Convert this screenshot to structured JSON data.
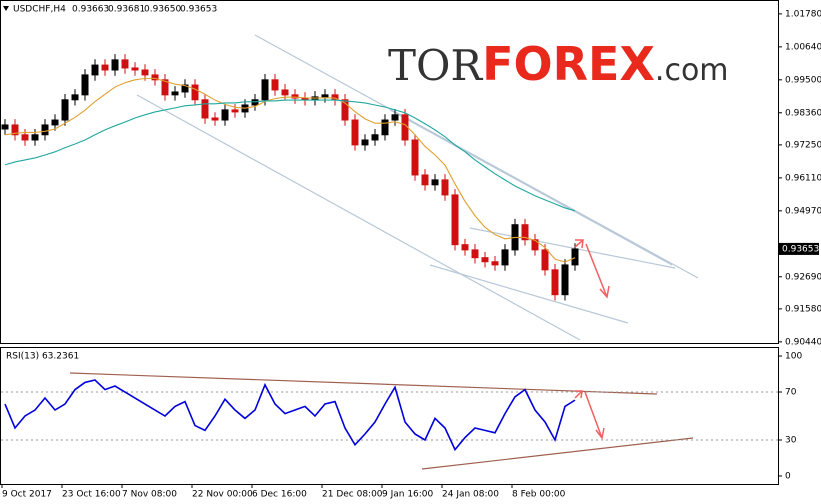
{
  "chart_data": [
    {
      "type": "candlestick",
      "title": "USDCHF,H4",
      "header_ohlc": [
        0.93663,
        0.93681,
        {
          "value": 0.9365,
          "label": "0.93650"
        },
        0.93653
      ],
      "watermark": {
        "prefix": "TOR",
        "brand": "FOREX",
        "suffix": ".com"
      },
      "last_price": 0.93653,
      "up_color": "#000000",
      "down_color": "#d01010",
      "open": [
        0.978,
        0.9794,
        0.976,
        0.9742,
        0.976,
        0.9794,
        0.9811,
        0.9881,
        0.9898,
        0.9967,
        1.0001,
        0.9984,
        1.0019,
        0.9991,
        0.9984,
        0.9967,
        0.995,
        0.9898,
        0.9908,
        0.9932,
        0.9881,
        0.9818,
        0.9811,
        0.9846,
        0.9839,
        0.9863,
        0.9881,
        0.995,
        0.9915,
        0.9898,
        0.9887,
        0.9881,
        0.9891,
        0.9898,
        0.9881,
        0.9811,
        0.9725,
        0.9742,
        0.976,
        0.9811,
        0.9829,
        0.9742,
        0.9621,
        0.9587,
        0.9604,
        0.9552,
        0.938,
        0.9362,
        0.9335,
        0.9321,
        0.931,
        0.9362,
        0.9449,
        0.9397,
        0.9362,
        0.9293,
        0.9207,
        0.931
      ],
      "high": [
        0.9814,
        0.9814,
        0.978,
        0.978,
        0.9814,
        0.9831,
        0.9901,
        0.9918,
        0.9987,
        1.0021,
        1.0021,
        1.0039,
        1.0039,
        1.0011,
        1.0004,
        0.9987,
        0.997,
        0.9928,
        0.9952,
        0.9952,
        0.9901,
        0.9838,
        0.9866,
        0.9866,
        0.9883,
        0.9901,
        0.997,
        0.997,
        0.9935,
        0.9918,
        0.9907,
        0.9911,
        0.9918,
        0.9918,
        0.9901,
        0.9831,
        0.9762,
        0.978,
        0.9831,
        0.9849,
        0.9849,
        0.9762,
        0.9641,
        0.9624,
        0.9624,
        0.9572,
        0.94,
        0.9382,
        0.9355,
        0.9341,
        0.9382,
        0.9469,
        0.9469,
        0.9417,
        0.9382,
        0.9313,
        0.933,
        0.9385
      ],
      "low": [
        0.976,
        0.974,
        0.9722,
        0.9722,
        0.974,
        0.9774,
        0.9791,
        0.9861,
        0.9878,
        0.9947,
        0.9964,
        0.9964,
        0.9971,
        0.9964,
        0.9947,
        0.993,
        0.9878,
        0.9878,
        0.9888,
        0.9861,
        0.9798,
        0.9791,
        0.9791,
        0.9819,
        0.9819,
        0.9843,
        0.9861,
        0.9895,
        0.9878,
        0.9867,
        0.9861,
        0.9861,
        0.9871,
        0.9861,
        0.9791,
        0.9705,
        0.9705,
        0.9722,
        0.974,
        0.9791,
        0.9722,
        0.9601,
        0.9567,
        0.9567,
        0.9532,
        0.936,
        0.9342,
        0.9315,
        0.9301,
        0.929,
        0.929,
        0.9342,
        0.9377,
        0.9342,
        0.9273,
        0.9187,
        0.9187,
        0.929
      ],
      "close": [
        0.9794,
        0.976,
        0.9742,
        0.976,
        0.9794,
        0.9811,
        0.9881,
        0.9898,
        0.9967,
        1.0001,
        0.9984,
        1.0019,
        0.9991,
        0.9984,
        0.9967,
        0.995,
        0.9898,
        0.9908,
        0.9932,
        0.9881,
        0.9818,
        0.9811,
        0.9846,
        0.9839,
        0.9863,
        0.9881,
        0.995,
        0.9915,
        0.9898,
        0.9887,
        0.9881,
        0.9891,
        0.9898,
        0.9881,
        0.9811,
        0.9725,
        0.9742,
        0.976,
        0.9811,
        0.9829,
        0.9742,
        0.9621,
        0.9587,
        0.9604,
        0.9552,
        0.938,
        0.9362,
        0.9335,
        0.9321,
        0.931,
        0.9362,
        0.9449,
        0.9397,
        0.9362,
        0.9293,
        0.9207,
        0.931,
        0.9365
      ],
      "series": [
        {
          "color": "#e0a030",
          "values": [
            0.976,
            0.9765,
            0.9768,
            0.9768,
            0.9772,
            0.978,
            0.98,
            0.982,
            0.9845,
            0.9875,
            0.99,
            0.9925,
            0.994,
            0.995,
            0.9955,
            0.9955,
            0.9945,
            0.9935,
            0.993,
            0.9918,
            0.99,
            0.988,
            0.9865,
            0.9855,
            0.9852,
            0.9858,
            0.9875,
            0.9885,
            0.989,
            0.989,
            0.9888,
            0.9887,
            0.9888,
            0.9887,
            0.987,
            0.984,
            0.9815,
            0.98,
            0.98,
            0.9805,
            0.9795,
            0.976,
            0.972,
            0.969,
            0.9655,
            0.959,
            0.953,
            0.948,
            0.944,
            0.9415,
            0.94,
            0.9405,
            0.9405,
            0.9395,
            0.937,
            0.933,
            0.932,
            0.9335
          ]
        },
        {
          "color": "#20a8a0",
          "values": [
            0.9656,
            0.9666,
            0.9673,
            0.968,
            0.969,
            0.9701,
            0.9715,
            0.9728,
            0.9742,
            0.976,
            0.9777,
            0.9791,
            0.9804,
            0.9818,
            0.9829,
            0.9839,
            0.9846,
            0.9853,
            0.986,
            0.9863,
            0.9867,
            0.9867,
            0.987,
            0.987,
            0.9874,
            0.9874,
            0.9877,
            0.9877,
            0.988,
            0.988,
            0.988,
            0.988,
            0.988,
            0.988,
            0.9877,
            0.9874,
            0.987,
            0.9863,
            0.9856,
            0.9846,
            0.9836,
            0.9818,
            0.9798,
            0.9777,
            0.9753,
            0.9725,
            0.9701,
            0.9673,
            0.9649,
            0.9625,
            0.9604,
            0.9583,
            0.9566,
            0.9549,
            0.9535,
            0.9521,
            0.9507,
            0.9497
          ]
        }
      ],
      "ylim": [
        0.904,
        1.0226
      ],
      "yticks": [
        {
          "value": 1.0178,
          "label": "1.01780"
        },
        {
          "value": 1.0064,
          "label": "1.00640"
        },
        {
          "value": 0.995,
          "label": "0.99500"
        },
        {
          "value": 0.9836,
          "label": "0.98360"
        },
        {
          "value": 0.9725,
          "label": "0.97250"
        },
        {
          "value": 0.9611,
          "label": "0.96110"
        },
        {
          "value": 0.9497,
          "label": "0.94970"
        },
        {
          "value": 0.9269,
          "label": "0.92690"
        },
        {
          "value": 0.9158,
          "label": "0.91580"
        },
        {
          "value": 0.9044,
          "label": "0.90440"
        }
      ],
      "xticks": [
        {
          "value": 0,
          "label": "9 Oct 2017"
        },
        {
          "value": 6,
          "label": "23 Oct 16:00"
        },
        {
          "value": 12,
          "label": "7 Nov 08:00"
        },
        {
          "value": 19,
          "label": "22 Nov 00:00"
        },
        {
          "value": 25,
          "label": "6 Dec 16:00"
        },
        {
          "value": 32,
          "label": "21 Dec 08:00"
        },
        {
          "value": 38,
          "label": "9 Jan 16:00"
        },
        {
          "value": 44,
          "label": "24 Jan 08:00"
        },
        {
          "value": 51,
          "label": "8 Feb 00:00"
        }
      ]
    },
    {
      "type": "line",
      "title": "RSI(13) 63.2361",
      "series": [
        {
          "color": "#0000dd",
          "values": [
            60,
            40,
            50,
            55,
            65,
            55,
            60,
            72,
            78,
            80,
            72,
            75,
            70,
            65,
            60,
            55,
            50,
            58,
            62,
            42,
            38,
            50,
            64,
            55,
            48,
            55,
            76,
            60,
            52,
            55,
            58,
            50,
            60,
            62,
            40,
            26,
            35,
            45,
            60,
            74,
            45,
            35,
            30,
            48,
            40,
            22,
            32,
            40,
            38,
            36,
            52,
            66,
            72,
            55,
            45,
            30,
            58,
            63.2361
          ]
        }
      ],
      "ylim": [
        -6.7,
        106.7
      ],
      "yticks": [
        100,
        70,
        30,
        0
      ],
      "grid_values": [
        70,
        30
      ]
    }
  ]
}
